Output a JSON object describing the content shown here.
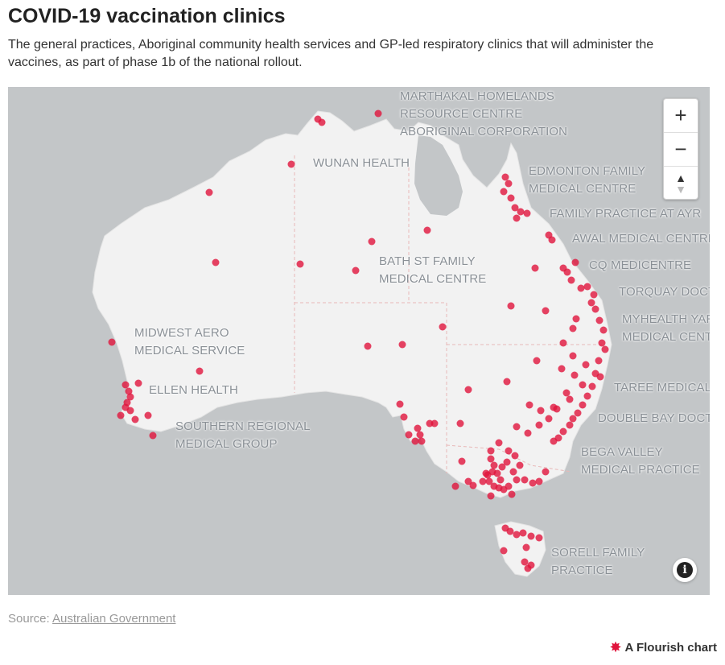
{
  "title": "COVID-19 vaccination clinics",
  "subtitle": "The general practices, Aboriginal community health services and GP-led respiratory clinics that will administer the vaccines, as part of phase 1b of the national rollout.",
  "colors": {
    "point": "#e0143c",
    "land": "#f2f2f2",
    "water": "#c3c6c8",
    "label": "#8a9096"
  },
  "labels": {
    "marthakal_1": "MARTHAKAL HOMELANDS",
    "marthakal_2": "RESOURCE CENTRE",
    "marthakal_3": "ABORIGINAL CORPORATION",
    "wunan": "WUNAN HEALTH",
    "edmonton_1": "EDMONTON FAMILY",
    "edmonton_2": "MEDICAL CENTRE",
    "ayr": "FAMILY PRACTICE AT AYR",
    "awal": "AWAL MEDICAL CENTRE",
    "cq": "CQ MEDICENTRE",
    "torquay": "TORQUAY DOCT",
    "myhealth_1": "MYHEALTH YAR",
    "myhealth_2": "MEDICAL CENT",
    "bath_1": "BATH ST FAMILY",
    "bath_2": "MEDICAL CENTRE",
    "midwest_1": "MIDWEST AERO",
    "midwest_2": "MEDICAL SERVICE",
    "ellen": "ELLEN HEALTH",
    "southern_1": "SOUTHERN REGIONAL",
    "southern_2": "MEDICAL GROUP",
    "taree": "TAREE MEDICAL",
    "doublebay": "DOUBLE BAY DOCT",
    "bega_1": "BEGA VALLEY",
    "bega_2": "MEDICAL PRACTICE",
    "sorell_1": "SORELL FAMILY",
    "sorell_2": "PRACTICE"
  },
  "controls": {
    "zoom_in": "+",
    "zoom_out": "−",
    "compass_up": "▲",
    "compass_down": "▼",
    "info": "i"
  },
  "icons": {
    "zoom_in": "plus-icon",
    "zoom_out": "minus-icon",
    "compass": "compass-icon",
    "info": "info-icon",
    "brand": "flourish-star-icon"
  },
  "source": {
    "prefix": "Source: ",
    "link": "Australian Government"
  },
  "brand": {
    "star": "✸",
    "text": "A Flourish chart"
  }
}
